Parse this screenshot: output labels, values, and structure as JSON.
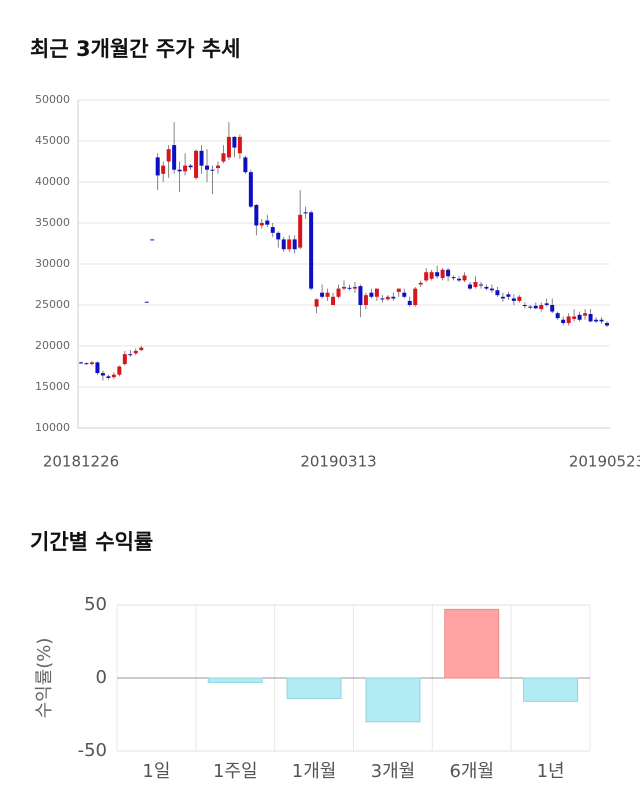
{
  "chart_data": [
    {
      "type": "candlestick",
      "title": "최근 3개월간 주가 추세",
      "categories": [
        "20181226",
        null,
        null,
        null,
        null,
        null,
        null,
        null,
        null,
        null,
        null,
        null,
        null,
        null,
        null,
        null,
        null,
        null,
        null,
        null,
        null,
        null,
        null,
        null,
        null,
        null,
        null,
        null,
        null,
        null,
        null,
        null,
        null,
        null,
        null,
        null,
        null,
        null,
        null,
        null,
        null,
        null,
        null,
        null,
        null,
        null,
        null,
        "20190313",
        null,
        null,
        null,
        null,
        null,
        null,
        null,
        null,
        null,
        null,
        null,
        null,
        null,
        null,
        null,
        null,
        null,
        null,
        null,
        null,
        null,
        null,
        null,
        null,
        null,
        null,
        null,
        null,
        null,
        null,
        null,
        null,
        null,
        null,
        null,
        null,
        null,
        null,
        null,
        null,
        null,
        null,
        null,
        null,
        null,
        null,
        null,
        null,
        "20190523"
      ],
      "open": [
        18000,
        17900,
        17800,
        18000,
        16700,
        16300,
        16200,
        16500,
        17800,
        19000,
        19100,
        19500,
        25400,
        33000,
        43000,
        41000,
        42500,
        44500,
        41500,
        41300,
        42000,
        40500,
        43800,
        42000,
        41500,
        41700,
        42500,
        43000,
        45500,
        43500,
        43000,
        41200,
        37200,
        34700,
        35300,
        34500,
        33800,
        33000,
        31800,
        33000,
        32000,
        36300,
        36300,
        24800,
        26500,
        26000,
        25000,
        26000,
        27000,
        27100,
        27000,
        27300,
        25000,
        26500,
        26000,
        25800,
        25700,
        26000,
        26600,
        26500,
        25500,
        25000,
        27500,
        28000,
        28200,
        29000,
        28300,
        29300,
        28400,
        28200,
        28000,
        27500,
        27200,
        27500,
        27200,
        27000,
        26800,
        26000,
        26300,
        25800,
        25500,
        25000,
        24800,
        24900,
        24500,
        25200,
        25000,
        24000,
        23200,
        22800,
        23300,
        23800,
        23700,
        23900,
        23200,
        23200,
        22800
      ],
      "high": [
        18100,
        18000,
        18200,
        18100,
        17000,
        16500,
        16800,
        17600,
        19400,
        19500,
        19700,
        20000,
        25400,
        33000,
        43500,
        42500,
        44500,
        47300,
        42500,
        43500,
        42200,
        44000,
        44500,
        44000,
        42000,
        42500,
        44500,
        47300,
        45600,
        45800,
        43200,
        41500,
        37300,
        35500,
        36000,
        35000,
        34000,
        33300,
        33500,
        33500,
        39000,
        37000,
        36500,
        25800,
        27500,
        27000,
        26500,
        27500,
        28000,
        27500,
        27800,
        27500,
        26500,
        27000,
        27000,
        26200,
        26200,
        26500,
        27000,
        27000,
        26000,
        27200,
        28000,
        29500,
        29300,
        29800,
        29500,
        29500,
        28600,
        28500,
        29000,
        27800,
        28500,
        27800,
        27500,
        27500,
        27200,
        26500,
        26600,
        26300,
        26200,
        25300,
        25000,
        25300,
        25300,
        25800,
        25800,
        24200,
        23600,
        24000,
        24500,
        24200,
        24500,
        24500,
        23500,
        23500,
        23000
      ],
      "low": [
        17800,
        17700,
        17600,
        16500,
        15800,
        15900,
        16000,
        16300,
        17600,
        18700,
        18900,
        19400,
        25400,
        33000,
        39000,
        40000,
        40500,
        41000,
        38800,
        40800,
        41500,
        40300,
        41000,
        40000,
        38500,
        41000,
        42300,
        42700,
        43000,
        42800,
        41000,
        36800,
        33500,
        34300,
        34500,
        33300,
        32000,
        31500,
        31500,
        31300,
        31800,
        35500,
        26800,
        24000,
        25800,
        25500,
        25000,
        25800,
        26800,
        26800,
        26500,
        23500,
        24500,
        25800,
        25500,
        25300,
        25500,
        25500,
        26000,
        25800,
        24800,
        24800,
        27200,
        27800,
        28000,
        28200,
        28000,
        27900,
        28000,
        27800,
        27800,
        26800,
        27000,
        27000,
        26800,
        26500,
        26000,
        25400,
        25600,
        25000,
        25300,
        24600,
        24500,
        24500,
        24200,
        24800,
        24000,
        23200,
        22500,
        22500,
        23000,
        23000,
        23200,
        22900,
        22800,
        22700,
        22300
      ],
      "close": [
        17900,
        17800,
        18000,
        16700,
        16400,
        16100,
        16500,
        17500,
        19000,
        18900,
        19400,
        19800,
        25400,
        33000,
        40800,
        42000,
        44000,
        41500,
        41300,
        42000,
        41800,
        43800,
        42000,
        41500,
        41500,
        42000,
        43500,
        45500,
        44200,
        45500,
        41200,
        37000,
        34700,
        35000,
        34800,
        33800,
        33000,
        31800,
        33000,
        31800,
        36000,
        36200,
        27000,
        25700,
        26000,
        26500,
        26000,
        27000,
        27200,
        27000,
        27200,
        25000,
        26200,
        26000,
        27000,
        25700,
        26000,
        25800,
        27000,
        26000,
        25000,
        27000,
        27700,
        29000,
        29000,
        28500,
        29300,
        28500,
        28300,
        28000,
        28600,
        27000,
        27800,
        27400,
        27000,
        26800,
        26200,
        25800,
        26000,
        25500,
        26000,
        25000,
        24700,
        24600,
        25000,
        25000,
        24200,
        23400,
        22800,
        23600,
        23600,
        23200,
        24000,
        23000,
        23000,
        23000,
        22500
      ],
      "up_color": "#d9141b",
      "down_color": "#0c10c0",
      "ylim": [
        10000,
        50000
      ],
      "yticks": [
        10000,
        15000,
        20000,
        25000,
        30000,
        35000,
        40000,
        45000,
        50000
      ],
      "grid": true
    },
    {
      "type": "bar",
      "title": "기간별 수익률",
      "y_label": "수익률(%)",
      "categories": [
        "1일",
        "1주일",
        "1개월",
        "3개월",
        "6개월",
        "1년"
      ],
      "values": [
        0,
        -3,
        -14,
        -30,
        47,
        -16
      ],
      "positive_color": "#ffa3a3",
      "negative_color": "#b3ebf5",
      "ylim": [
        -50,
        50
      ],
      "yticks": [
        -50,
        0,
        50
      ],
      "grid": true
    }
  ]
}
